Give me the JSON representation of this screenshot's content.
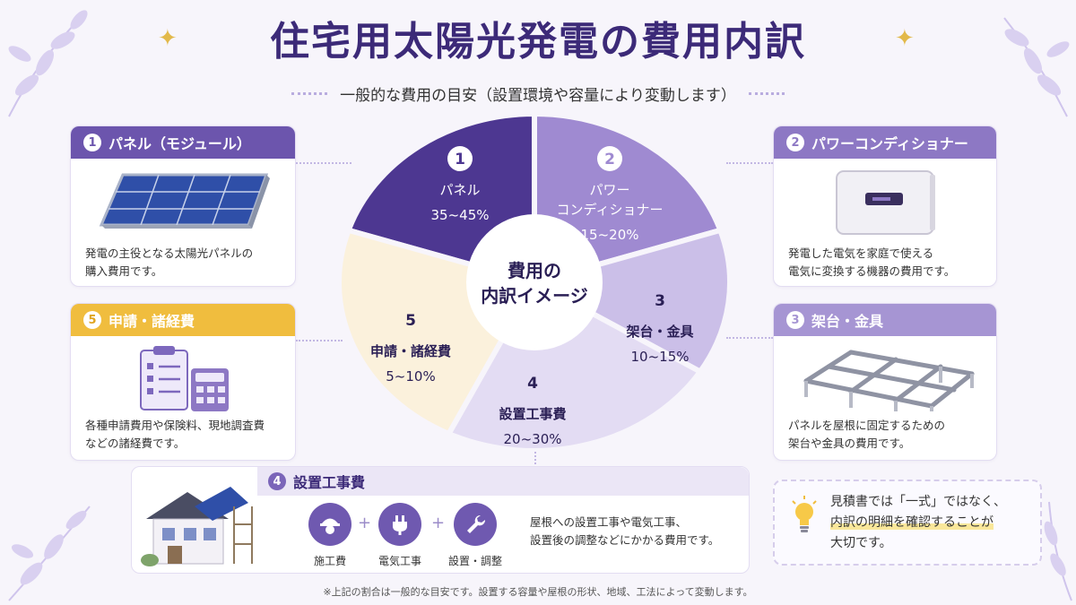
{
  "title": "住宅用太陽光発電の費用内訳",
  "subtitle": "一般的な費用の目安（設置環境や容量により変動します）",
  "pie_center": [
    "費用の",
    "内訳イメージ"
  ],
  "segments": [
    {
      "num": "1",
      "label": [
        "パネル"
      ],
      "range": "35~45%",
      "color": "#4d3791"
    },
    {
      "num": "2",
      "label": [
        "パワー",
        "コンディショナー"
      ],
      "range": "15~20%",
      "color": "#9f8ad1"
    },
    {
      "num": "3",
      "label": [
        "架台・金具"
      ],
      "range": "10~15%",
      "color": "#cbbfe8"
    },
    {
      "num": "4",
      "label": [
        "設置工事費"
      ],
      "range": "20~30%",
      "color": "#e3dcf3"
    },
    {
      "num": "5",
      "label": [
        "申請・諸経費"
      ],
      "range": "5~10%",
      "color": "#fbf1dc"
    }
  ],
  "cards": {
    "panel": {
      "num": "1",
      "title": "パネル（モジュール）",
      "desc": [
        "発電の主役となる太陽光パネルの",
        "購入費用です。"
      ],
      "color": "#6c55ad"
    },
    "pcs": {
      "num": "2",
      "title": "パワーコンディショナー",
      "desc": [
        "発電した電気を家庭で使える",
        "電気に変換する機器の費用です。"
      ],
      "color": "#8d78c4"
    },
    "rack": {
      "num": "3",
      "title": "架台・金具",
      "desc": [
        "パネルを屋根に固定するための",
        "架台や金具の費用です。"
      ],
      "color": "#a695d3"
    },
    "admin": {
      "num": "5",
      "title": "申請・諸経費",
      "desc": [
        "各種申請費用や保険料、現地調査費",
        "などの諸経費です。"
      ],
      "color": "#f0bd3e"
    }
  },
  "install": {
    "num": "4",
    "title": "設置工事費",
    "items": [
      {
        "label": "施工費",
        "icon": "worker-helmet-icon"
      },
      {
        "label": "電気工事",
        "icon": "plug-icon"
      },
      {
        "label": "設置・調整",
        "icon": "wrench-icon"
      }
    ],
    "desc": [
      "屋根への設置工事や電気工事、",
      "設置後の調整などにかかる費用です。"
    ]
  },
  "tip": {
    "line1": "見積書では「一式」ではなく、",
    "line2": "内訳の明細を確認することが",
    "line3": "大切です。"
  },
  "footnote": "※上記の割合は一般的な目安です。設置する容量や屋根の形状、地域、工法によって変動します。"
}
